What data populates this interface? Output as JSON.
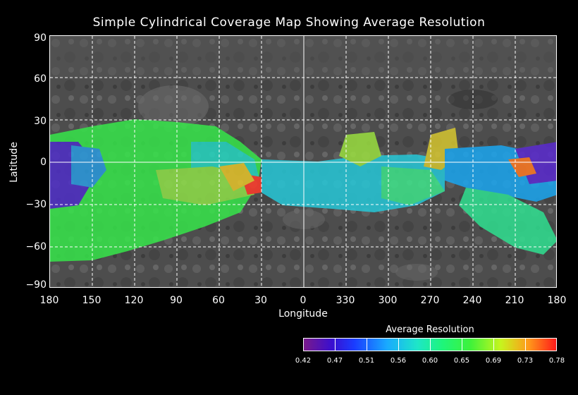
{
  "title": "Simple Cylindrical Coverage Map Showing Average Resolution",
  "axes": {
    "y_label": "Latitude",
    "x_label": "Longitude",
    "y_ticks": [
      "90",
      "60",
      "30",
      "0",
      "−30",
      "−60",
      "−90"
    ],
    "x_ticks": [
      "180",
      "150",
      "120",
      "90",
      "60",
      "30",
      "0",
      "330",
      "300",
      "270",
      "240",
      "210",
      "180"
    ]
  },
  "colorbar": {
    "title": "Average Resolution",
    "ticks": [
      "0.42",
      "0.47",
      "0.51",
      "0.56",
      "0.60",
      "0.65",
      "0.69",
      "0.73",
      "0.78"
    ],
    "colors": [
      "#7a1a8a",
      "#3a0fcf",
      "#1a3cff",
      "#19aaff",
      "#1ee6c8",
      "#1ef57a",
      "#3ef23a",
      "#c6f51e",
      "#ff9a1a",
      "#ff1a1a"
    ]
  },
  "colors": {
    "background": "#000000",
    "grid": "#ffffff",
    "basemap": "#5a5a5a"
  }
}
